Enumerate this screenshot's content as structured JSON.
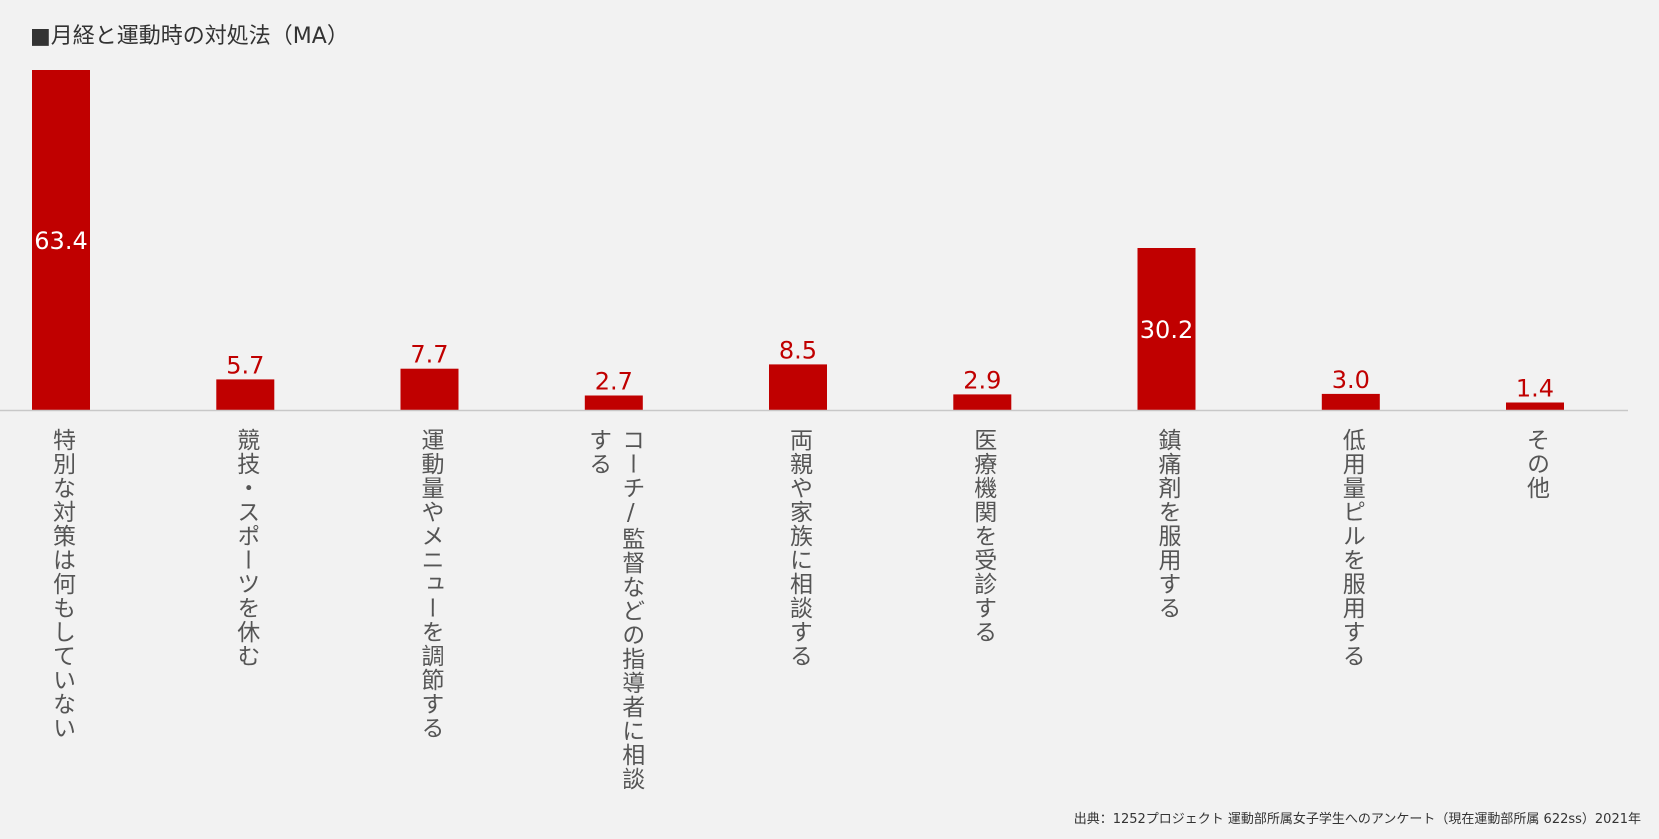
{
  "title": "■月経と運動時の対処法（MA）",
  "source": "出典：1252プロジェクト 運動部所属女子学生へのアンケート（現在運動部所属 622ss）2021年",
  "colors": {
    "bar": "#c00000",
    "label_inside": "#ffffff",
    "label_outside": "#c00000",
    "axis": "#c8c8c8",
    "background": "#f2f2f2"
  },
  "chart_data": {
    "type": "bar",
    "title": "■月経と運動時の対処法（MA）",
    "xlabel": "",
    "ylabel": "",
    "ylim": [
      0,
      63.4
    ],
    "grid": false,
    "legend": "none",
    "categories": [
      "特別な対策は何もしていない",
      "競技・スポーツを休む",
      "運動量やメニューを調節する",
      "コーチ/監督などの指導者に相談する",
      "両親や家族に相談する",
      "医療機関を受診する",
      "鎮痛剤を服用する",
      "低用量ピルを服用する",
      "その他"
    ],
    "values": [
      63.4,
      5.7,
      7.7,
      2.7,
      8.5,
      2.9,
      30.2,
      3.0,
      1.4
    ],
    "value_labels": [
      "63.4",
      "5.7",
      "7.7",
      "2.7",
      "8.5",
      "2.9",
      "30.2",
      "3.0",
      "1.4"
    ]
  }
}
